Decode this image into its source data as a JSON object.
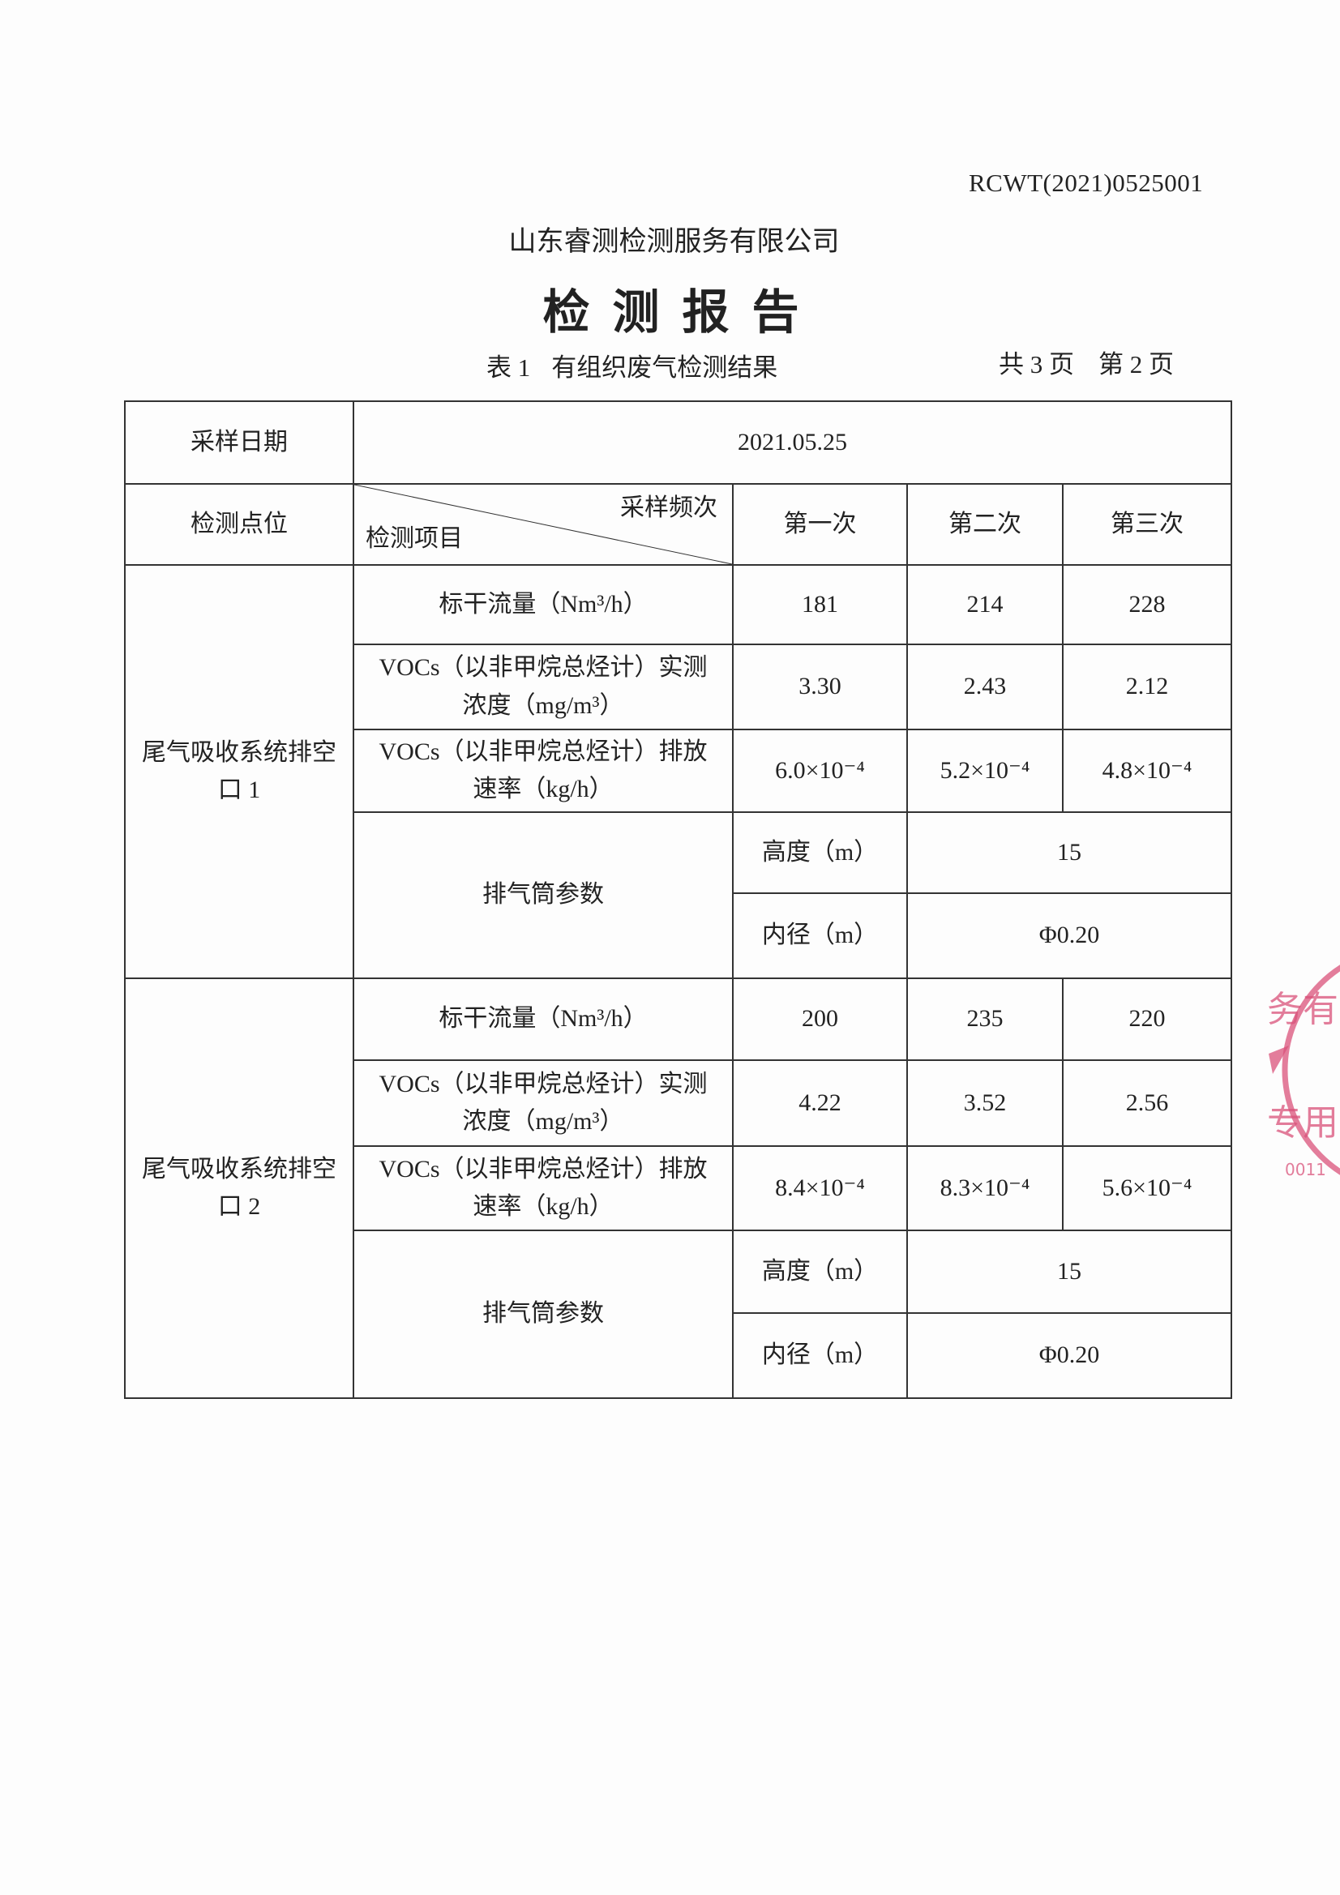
{
  "header": {
    "report_number": "RCWT(2021)0525001",
    "company": "山东睿测检测服务有限公司",
    "title": "检测报告",
    "table_label": "表 1",
    "table_title": "有组织废气检测结果",
    "total_pages": "共 3 页",
    "current_page": "第 2 页"
  },
  "table": {
    "sampling_date_label": "采样日期",
    "sampling_date": "2021.05.25",
    "point_label": "检测点位",
    "frequency_label": "采样频次",
    "item_label": "检测项目",
    "rounds": [
      "第一次",
      "第二次",
      "第三次"
    ],
    "groups": [
      {
        "point": "尾气吸收系统排空口 1",
        "rows": [
          {
            "item": "标干流量（Nm³/h）",
            "values": [
              "181",
              "214",
              "228"
            ]
          },
          {
            "item": "VOCs（以非甲烷总烃计）实测浓度（mg/m³）",
            "values": [
              "3.30",
              "2.43",
              "2.12"
            ]
          },
          {
            "item": "VOCs（以非甲烷总烃计）排放速率（kg/h）",
            "values": [
              "6.0×10⁻⁴",
              "5.2×10⁻⁴",
              "4.8×10⁻⁴"
            ]
          }
        ],
        "stack_label": "排气筒参数",
        "stack_params": [
          {
            "name": "高度（m）",
            "value": "15"
          },
          {
            "name": "内径（m）",
            "value": "Φ0.20"
          }
        ]
      },
      {
        "point": "尾气吸收系统排空口 2",
        "rows": [
          {
            "item": "标干流量（Nm³/h）",
            "values": [
              "200",
              "235",
              "220"
            ]
          },
          {
            "item": "VOCs（以非甲烷总烃计）实测浓度（mg/m³）",
            "values": [
              "4.22",
              "3.52",
              "2.56"
            ]
          },
          {
            "item": "VOCs（以非甲烷总烃计）排放速率（kg/h）",
            "values": [
              "8.4×10⁻⁴",
              "8.3×10⁻⁴",
              "5.6×10⁻⁴"
            ]
          }
        ],
        "stack_label": "排气筒参数",
        "stack_params": [
          {
            "name": "高度（m）",
            "value": "15"
          },
          {
            "name": "内径（m）",
            "value": "Φ0.20"
          }
        ]
      }
    ]
  },
  "stamp": {
    "color": "#d9527a",
    "visible_text": "务有 专用 0011"
  }
}
